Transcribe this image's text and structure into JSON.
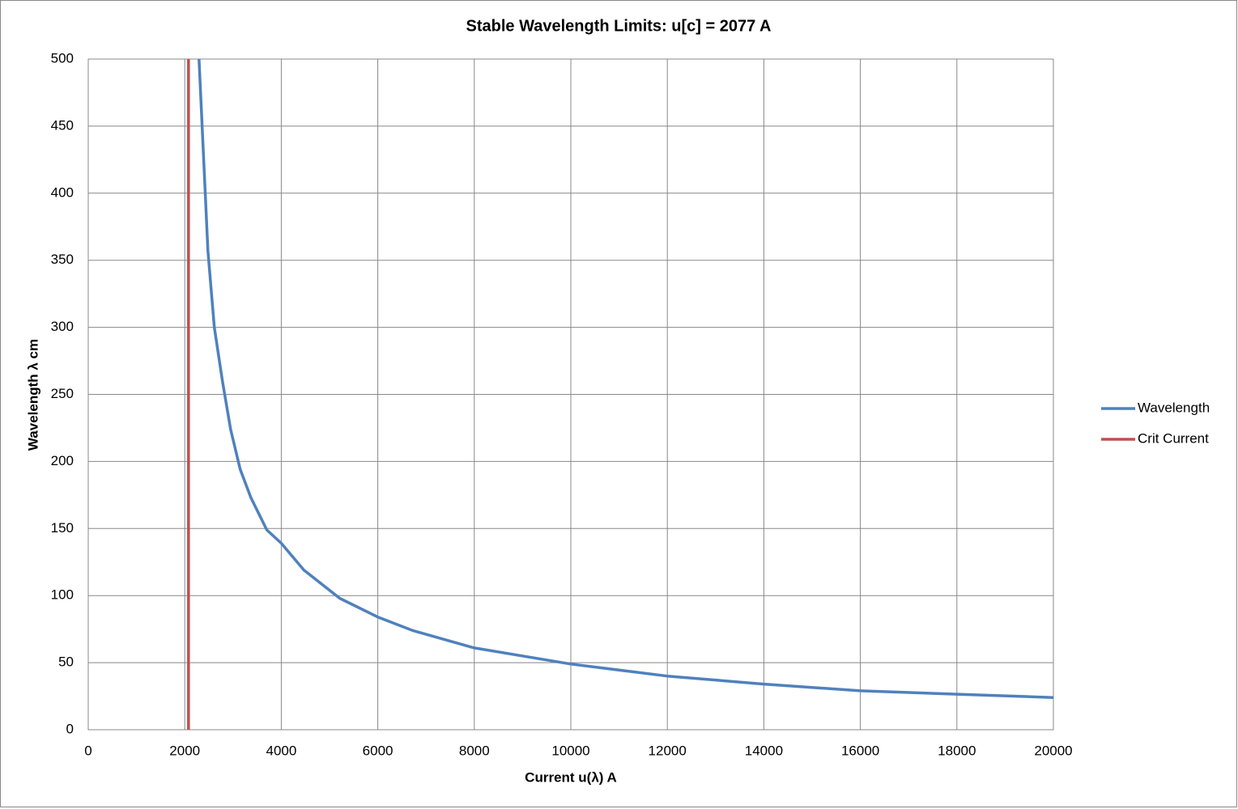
{
  "chart_data": {
    "type": "line",
    "title": "Stable Wavelength Limits:  u[c] =  2077 A",
    "x_label": "Current u(λ) A",
    "y_label": "Wavelength λ cm",
    "xlim": [
      0,
      20000
    ],
    "ylim": [
      0,
      500
    ],
    "xticks": [
      0,
      2000,
      4000,
      6000,
      8000,
      10000,
      12000,
      14000,
      16000,
      18000,
      20000
    ],
    "yticks": [
      0,
      50,
      100,
      150,
      200,
      250,
      300,
      350,
      400,
      450,
      500
    ],
    "grid": true,
    "legend": "right",
    "series": [
      {
        "name": "Wavelength",
        "color": "#4f81bd",
        "x": [
          2295,
          2480,
          2613,
          2780,
          2950,
          3150,
          3370,
          3700,
          4000,
          4470,
          5210,
          6000,
          6720,
          8000,
          10000,
          12000,
          14000,
          16000,
          18000,
          20000
        ],
        "values": [
          500,
          357,
          300,
          260,
          224,
          194,
          173,
          149,
          139,
          119,
          98,
          84,
          74,
          61,
          49,
          40,
          34,
          29,
          26.5,
          24
        ]
      },
      {
        "name": "Crit Current",
        "color": "#c0504d",
        "x": [
          2077,
          2077
        ],
        "values": [
          0,
          500
        ]
      }
    ]
  }
}
